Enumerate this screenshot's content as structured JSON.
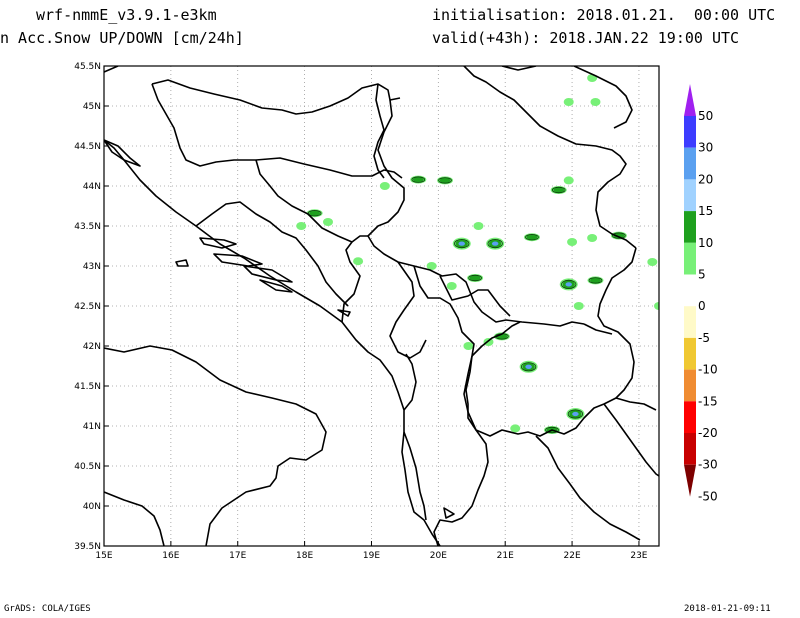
{
  "header": {
    "model": "wrf-nmmE_v3.9.1-e3km",
    "variable": "n Acc.Snow UP/DOWN [cm/24h]",
    "initialisation": "initialisation: 2018.01.21.  00:00 UTC",
    "valid": "valid(+43h): 2018.JAN.22 19:00 UTC"
  },
  "footer": {
    "left": "GrADS: COLA/IGES",
    "right": "2018-01-21-09:11"
  },
  "map": {
    "lon_min": 15,
    "lon_max": 23.3,
    "lat_min": 39.5,
    "lat_max": 45.5,
    "lon_ticks": [
      "15E",
      "16E",
      "17E",
      "18E",
      "19E",
      "20E",
      "21E",
      "22E",
      "23E"
    ],
    "lat_ticks": [
      "39.5N",
      "40N",
      "40.5N",
      "41N",
      "41.5N",
      "42N",
      "42.5N",
      "43N",
      "43.5N",
      "44N",
      "44.5N",
      "45N",
      "45.5N"
    ],
    "grid": true
  },
  "colorbar": {
    "labels": [
      "50",
      "30",
      "20",
      "15",
      "10",
      "5",
      "0",
      "-5",
      "-10",
      "-15",
      "-20",
      "-30",
      "-50"
    ],
    "colors": [
      "#a020f0",
      "#3c3cff",
      "#5aa0f0",
      "#a0d2ff",
      "#1ea01e",
      "#78f078",
      "#ffffff",
      "#fffac8",
      "#f0c832",
      "#f08c32",
      "#ff0000",
      "#c80000",
      "#7d0000"
    ]
  },
  "snow_patches": [
    {
      "lon": 19.2,
      "lat": 44.0,
      "level": 5
    },
    {
      "lon": 19.7,
      "lat": 44.08,
      "level": 10
    },
    {
      "lon": 20.1,
      "lat": 44.07,
      "level": 10
    },
    {
      "lon": 18.15,
      "lat": 43.66,
      "level": 10
    },
    {
      "lon": 18.35,
      "lat": 43.55,
      "level": 5
    },
    {
      "lon": 17.95,
      "lat": 43.5,
      "level": 5
    },
    {
      "lon": 20.35,
      "lat": 43.28,
      "level": 20
    },
    {
      "lon": 20.85,
      "lat": 43.28,
      "level": 20
    },
    {
      "lon": 20.6,
      "lat": 43.5,
      "level": 5
    },
    {
      "lon": 21.4,
      "lat": 43.36,
      "level": 10
    },
    {
      "lon": 21.8,
      "lat": 43.95,
      "level": 10
    },
    {
      "lon": 21.95,
      "lat": 44.07,
      "level": 5
    },
    {
      "lon": 22.7,
      "lat": 43.38,
      "level": 10
    },
    {
      "lon": 22.0,
      "lat": 43.3,
      "level": 5
    },
    {
      "lon": 22.3,
      "lat": 43.35,
      "level": 5
    },
    {
      "lon": 23.2,
      "lat": 43.05,
      "level": 5
    },
    {
      "lon": 20.55,
      "lat": 42.85,
      "level": 10
    },
    {
      "lon": 20.2,
      "lat": 42.75,
      "level": 5
    },
    {
      "lon": 21.95,
      "lat": 42.77,
      "level": 20
    },
    {
      "lon": 22.35,
      "lat": 42.82,
      "level": 10
    },
    {
      "lon": 22.1,
      "lat": 42.5,
      "level": 5
    },
    {
      "lon": 20.95,
      "lat": 42.12,
      "level": 10
    },
    {
      "lon": 20.75,
      "lat": 42.05,
      "level": 5
    },
    {
      "lon": 21.35,
      "lat": 41.74,
      "level": 20
    },
    {
      "lon": 22.05,
      "lat": 41.15,
      "level": 20
    },
    {
      "lon": 21.7,
      "lat": 40.95,
      "level": 10
    },
    {
      "lon": 21.15,
      "lat": 40.97,
      "level": 5
    },
    {
      "lon": 22.35,
      "lat": 45.05,
      "level": 5
    },
    {
      "lon": 21.95,
      "lat": 45.05,
      "level": 5
    },
    {
      "lon": 19.9,
      "lat": 43.0,
      "level": 5
    },
    {
      "lon": 18.8,
      "lat": 43.06,
      "level": 5
    },
    {
      "lon": 22.3,
      "lat": 45.35,
      "level": 5
    },
    {
      "lon": 20.45,
      "lat": 42.0,
      "level": 5
    },
    {
      "lon": 23.3,
      "lat": 42.5,
      "level": 5
    }
  ]
}
